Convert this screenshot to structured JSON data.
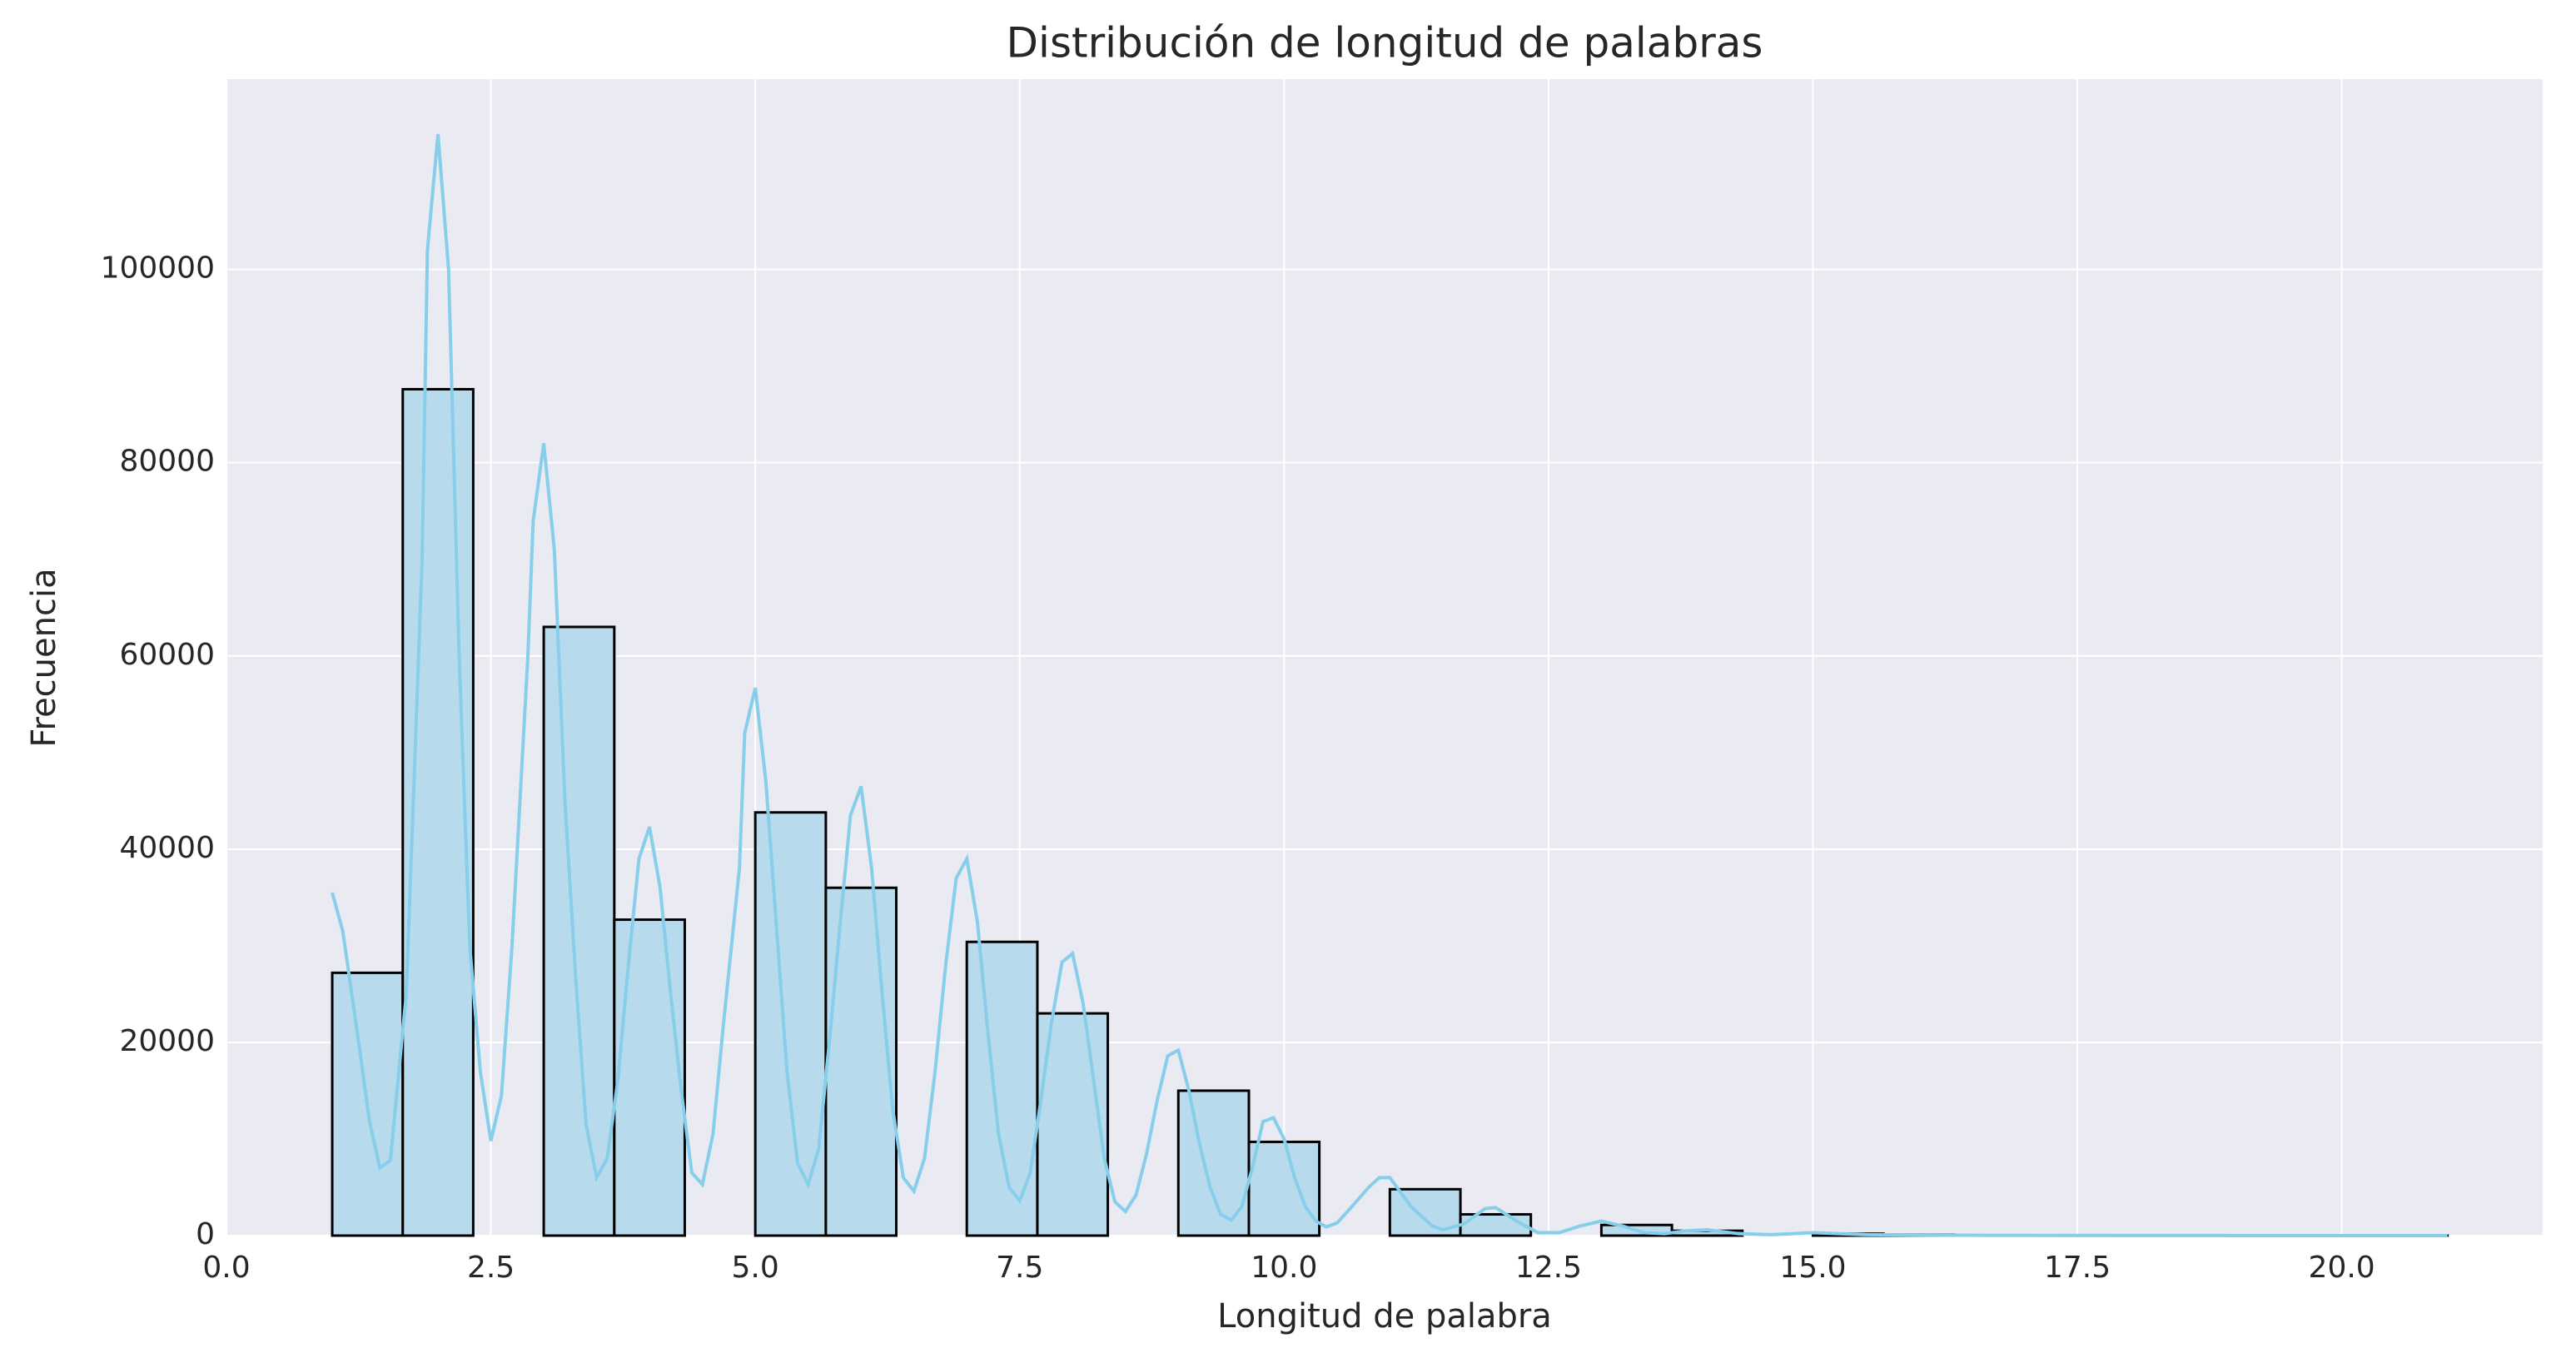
{
  "chart_data": {
    "type": "histogram",
    "title": "Distribución de longitud de palabras",
    "x_label": "Longitud de palabra",
    "y_label": "Frecuencia",
    "bins": [
      1,
      1.667,
      2.333,
      3,
      3.667,
      4.333,
      5,
      5.667,
      6.333,
      7,
      7.667,
      8.333,
      9,
      9.667,
      10.333,
      11,
      11.667,
      12.333,
      13,
      13.667,
      14.333,
      15,
      15.667,
      16.333,
      17,
      17.667,
      18.333,
      19,
      19.667,
      20.333,
      21
    ],
    "values": [
      27200,
      87600,
      0,
      63000,
      32700,
      0,
      43800,
      36000,
      0,
      30400,
      23000,
      0,
      15000,
      9700,
      0,
      4800,
      2200,
      0,
      1100,
      500,
      0,
      200,
      100,
      0,
      30,
      20,
      0,
      10,
      5,
      2
    ],
    "color": "#b7dbed",
    "edgecolor": "#000000",
    "kde": {
      "color": "#87ceeb",
      "x": [
        1,
        1.1,
        1.25,
        1.35,
        1.45,
        1.55,
        1.7,
        1.85,
        1.9,
        2.0,
        2.1,
        2.2,
        2.3,
        2.4,
        2.5,
        2.6,
        2.7,
        2.85,
        2.9,
        3.0,
        3.1,
        3.2,
        3.3,
        3.4,
        3.5,
        3.6,
        3.7,
        3.8,
        3.9,
        4.0,
        4.1,
        4.2,
        4.3,
        4.4,
        4.5,
        4.6,
        4.7,
        4.85,
        4.9,
        5.0,
        5.1,
        5.2,
        5.3,
        5.4,
        5.5,
        5.6,
        5.7,
        5.8,
        5.9,
        6.0,
        6.1,
        6.2,
        6.3,
        6.4,
        6.5,
        6.6,
        6.7,
        6.8,
        6.9,
        7.0,
        7.1,
        7.2,
        7.3,
        7.4,
        7.5,
        7.6,
        7.7,
        7.8,
        7.9,
        8.0,
        8.1,
        8.2,
        8.3,
        8.4,
        8.5,
        8.6,
        8.7,
        8.8,
        8.9,
        9.0,
        9.1,
        9.2,
        9.3,
        9.4,
        9.5,
        9.6,
        9.7,
        9.8,
        9.9,
        10.0,
        10.1,
        10.2,
        10.3,
        10.4,
        10.5,
        10.6,
        10.8,
        10.9,
        11.0,
        11.2,
        11.4,
        11.5,
        11.7,
        11.9,
        12.0,
        12.2,
        12.4,
        12.6,
        12.8,
        13.0,
        13.2,
        13.4,
        13.6,
        13.8,
        14.0,
        14.3,
        14.6,
        15.0,
        15.5,
        16,
        17,
        18,
        19,
        20,
        21
      ],
      "values": [
        35500,
        31500,
        20000,
        12000,
        7000,
        7800,
        25000,
        70000,
        102000,
        114000,
        100000,
        60000,
        30000,
        17000,
        9800,
        14500,
        30000,
        60000,
        74000,
        82000,
        71000,
        45000,
        27000,
        11500,
        6000,
        8000,
        16000,
        28000,
        39000,
        42300,
        36000,
        25000,
        15000,
        6500,
        5300,
        10500,
        22000,
        38000,
        52000,
        56700,
        47000,
        32000,
        17000,
        7500,
        5300,
        9000,
        20000,
        32000,
        43500,
        46500,
        38000,
        25000,
        13000,
        6000,
        4600,
        8000,
        17000,
        28000,
        37000,
        39000,
        32500,
        21000,
        10500,
        5000,
        3600,
        6500,
        14000,
        22000,
        28300,
        29200,
        24000,
        16000,
        8000,
        3500,
        2500,
        4200,
        8500,
        14000,
        18600,
        19200,
        15000,
        9500,
        5000,
        2200,
        1600,
        3000,
        7000,
        11800,
        12200,
        10000,
        6000,
        3000,
        1500,
        900,
        1300,
        2500,
        5000,
        6000,
        6000,
        3000,
        1000,
        600,
        1200,
        2800,
        2900,
        1500,
        300,
        300,
        1000,
        1500,
        1000,
        300,
        200,
        500,
        600,
        200,
        100,
        300,
        100,
        50,
        20,
        10,
        5,
        2,
        0
      ]
    },
    "xlim": [
      0,
      21.9
    ],
    "ylim": [
      0,
      119700
    ],
    "xticks": [
      {
        "value": 0,
        "label": "0.0"
      },
      2.5,
      {
        "value": 5,
        "label": "5.0"
      },
      7.5,
      {
        "value": 10,
        "label": "10.0"
      },
      12.5,
      {
        "value": 15,
        "label": "15.0"
      },
      17.5,
      {
        "value": 20,
        "label": "20.0"
      }
    ],
    "yticks": [
      0,
      20000,
      40000,
      60000,
      80000,
      100000
    ],
    "grid": true
  }
}
